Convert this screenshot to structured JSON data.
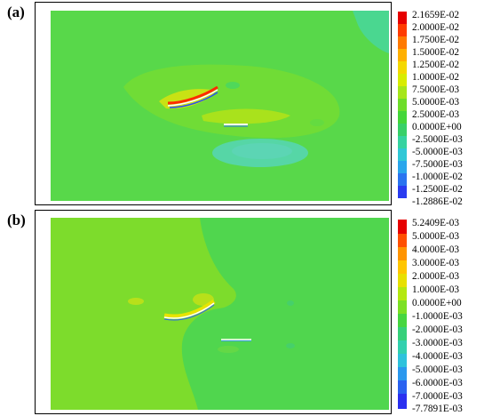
{
  "panels": [
    {
      "label": "(a)",
      "colorbar": {
        "ticks": [
          "2.1659E-02",
          "2.0000E-02",
          "1.7500E-02",
          "1.5000E-02",
          "1.2500E-02",
          "1.0000E-02",
          "7.5000E-03",
          "5.0000E-03",
          "2.5000E-03",
          "0.0000E+00",
          "-2.5000E-03",
          "-5.0000E-03",
          "-7.5000E-03",
          "-1.0000E-02",
          "-1.2500E-02",
          "-1.2886E-02"
        ],
        "colors": [
          "#e60000",
          "#ff3c00",
          "#ff7a00",
          "#ffb000",
          "#f4d800",
          "#d8ec00",
          "#a6e61a",
          "#6edd2a",
          "#44d63a",
          "#38d068",
          "#36d3a0",
          "#30c8d6",
          "#2aa6ec",
          "#2a74f0",
          "#2a3cf0"
        ]
      }
    },
    {
      "label": "(b)",
      "colorbar": {
        "ticks": [
          "5.2409E-03",
          "5.0000E-03",
          "4.0000E-03",
          "3.0000E-03",
          "2.0000E-03",
          "1.0000E-03",
          "0.0000E+00",
          "-1.0000E-03",
          "-2.0000E-03",
          "-3.0000E-03",
          "-4.0000E-03",
          "-5.0000E-03",
          "-6.0000E-03",
          "-7.0000E-03",
          "-7.7891E-03"
        ],
        "colors": [
          "#e60000",
          "#ff5000",
          "#ff9400",
          "#ffc600",
          "#e8e000",
          "#b4e810",
          "#7ce024",
          "#46d640",
          "#36d07a",
          "#32d0ae",
          "#2ec2dc",
          "#2a98ee",
          "#2a62f0",
          "#2a30f0"
        ]
      }
    }
  ]
}
